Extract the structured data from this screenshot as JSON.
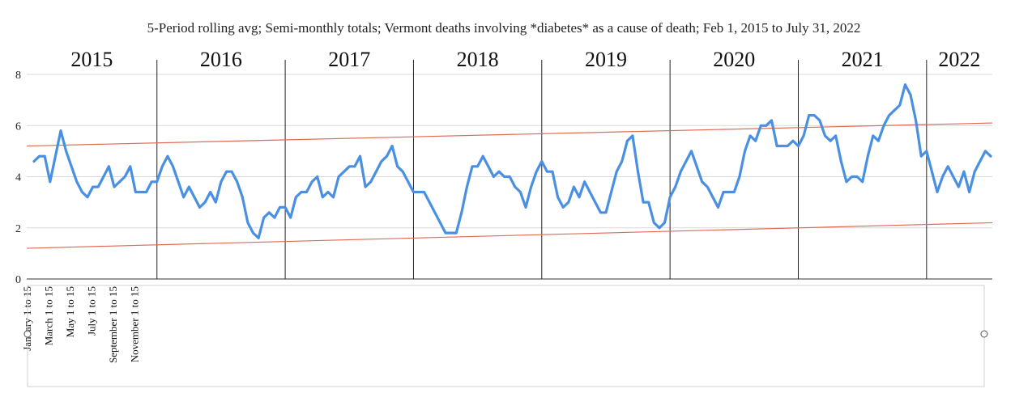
{
  "chart_data": {
    "type": "line",
    "title": "5-Period rolling avg; Semi-monthly totals; Vermont deaths involving *diabetes* as a cause of death; Feb 1, 2015 to July 31, 2022",
    "ylim": [
      0,
      8
    ],
    "yticks": [
      0,
      2,
      4,
      6,
      8
    ],
    "year_labels": [
      "2015",
      "2016",
      "2017",
      "2018",
      "2019",
      "2020",
      "2021",
      "2022"
    ],
    "x_tick_labels": [
      "January 1 to 15",
      "March 1 to 15",
      "May 1 to 15",
      "July 1 to 15",
      "September 1 to 15",
      "November 1 to 15"
    ],
    "series": [
      {
        "color": "#4a90e2",
        "values": [
          4.6,
          4.8,
          4.8,
          3.8,
          4.8,
          5.8,
          5.0,
          4.4,
          3.8,
          3.4,
          3.2,
          3.6,
          3.6,
          4.0,
          4.4,
          3.6,
          3.8,
          4.0,
          4.4,
          3.4,
          3.4,
          3.4,
          3.8,
          3.8,
          4.4,
          4.8,
          4.4,
          3.8,
          3.2,
          3.6,
          3.2,
          2.8,
          3.0,
          3.4,
          3.0,
          3.8,
          4.2,
          4.2,
          3.8,
          3.2,
          2.2,
          1.8,
          1.6,
          2.4,
          2.6,
          2.4,
          2.8,
          2.8,
          2.4,
          3.2,
          3.4,
          3.4,
          3.8,
          4.0,
          3.2,
          3.4,
          3.2,
          4.0,
          4.2,
          4.4,
          4.4,
          4.8,
          3.6,
          3.8,
          4.2,
          4.6,
          4.8,
          5.2,
          4.4,
          4.2,
          3.8,
          3.4,
          3.4,
          3.4,
          3.0,
          2.6,
          2.2,
          1.8,
          1.8,
          1.8,
          2.6,
          3.6,
          4.4,
          4.4,
          4.8,
          4.4,
          4.0,
          4.2,
          4.0,
          4.0,
          3.6,
          3.4,
          2.8,
          3.6,
          4.2,
          4.6,
          4.2,
          4.2,
          3.2,
          2.8,
          3.0,
          3.6,
          3.2,
          3.8,
          3.4,
          3.0,
          2.6,
          2.6,
          3.4,
          4.2,
          4.6,
          5.4,
          5.6,
          4.2,
          3.0,
          3.0,
          2.2,
          2.0,
          2.2,
          3.2,
          3.6,
          4.2,
          4.6,
          5.0,
          4.4,
          3.8,
          3.6,
          3.2,
          2.8,
          3.4,
          3.4,
          3.4,
          4.0,
          5.0,
          5.6,
          5.4,
          6.0,
          6.0,
          6.2,
          5.2,
          5.2,
          5.2,
          5.4,
          5.2,
          5.6,
          6.4,
          6.4,
          6.2,
          5.6,
          5.4,
          5.6,
          4.6,
          3.8,
          4.0,
          4.0,
          3.8,
          4.8,
          5.6,
          5.4,
          6.0,
          6.4,
          6.6,
          6.8,
          7.6,
          7.2,
          6.2,
          4.8,
          5.0,
          4.2,
          3.4,
          4.0,
          4.4,
          4.0,
          3.6,
          4.2,
          3.4,
          4.2,
          4.6,
          5.0,
          4.8
        ]
      }
    ],
    "trend_lines": [
      {
        "color": "#e06a55",
        "start": 5.2,
        "end": 6.1
      },
      {
        "color": "#e06a55",
        "start": 1.2,
        "end": 2.2
      }
    ]
  }
}
